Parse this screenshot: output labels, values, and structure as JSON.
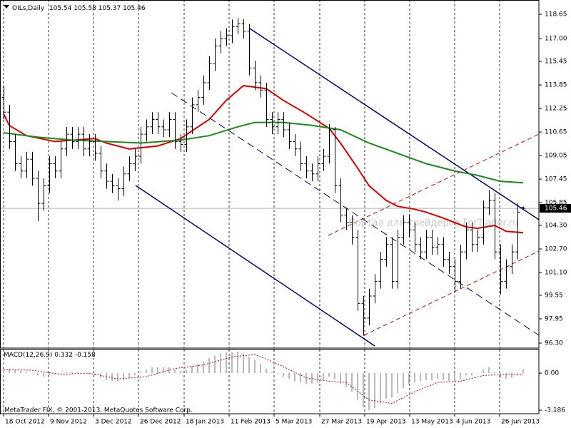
{
  "chart_data": [
    {
      "type": "ohlc",
      "symbol": "OILs,Daily",
      "color": "#000000",
      "xlim": [
        -0.625,
        93.75
      ],
      "xticks": [
        {
          "value": 0,
          "label": "18 Oct 2012"
        },
        {
          "value": 7.875,
          "label": "9 Nov 2012"
        },
        {
          "value": 15.75,
          "label": "3 Dec 2012"
        },
        {
          "value": 23.625,
          "label": "26 Dec 2012"
        },
        {
          "value": 31.625,
          "label": "18 Jan 2013"
        },
        {
          "value": 39.5,
          "label": "11 Feb 2013"
        },
        {
          "value": 47.375,
          "label": "5 Mar 2013"
        },
        {
          "value": 55.375,
          "label": "27 Mar 2013"
        },
        {
          "value": 63.25,
          "label": "19 Apr 2013"
        },
        {
          "value": 71.125,
          "label": "13 May 2013"
        },
        {
          "value": 79,
          "label": "4 Jun 2013"
        },
        {
          "value": 86.875,
          "label": "26 Jun 2013"
        }
      ],
      "ylim": [
        95.96,
        119.38
      ],
      "yticks": [
        118.65,
        {
          "value": 117,
          "label": "117.00"
        },
        115.45,
        113.85,
        112.25,
        110.65,
        109.05,
        107.45,
        105.85,
        {
          "value": 104.3,
          "label": "104.30"
        },
        {
          "value": 102.7,
          "label": "102.70"
        },
        {
          "value": 101.1,
          "label": "101.10"
        },
        99.55,
        97.95,
        {
          "value": 96.3,
          "label": "96.30"
        }
      ],
      "grid": true,
      "watermark": "Портал для трейдеров ForTrader.ru",
      "open": [
        113.0,
        112.0,
        110.0,
        108.5,
        108.0,
        108.8,
        107.5,
        105.8,
        107.0,
        108.5,
        108.0,
        109.5,
        110.5,
        110.0,
        110.5,
        109.5,
        110.0,
        109.2,
        108.0,
        107.3,
        107.0,
        106.8,
        107.8,
        108.5,
        109.0,
        110.5,
        111.0,
        111.5,
        111.0,
        110.8,
        111.5,
        110.0,
        109.8,
        111.0,
        112.5,
        113.0,
        114.0,
        115.3,
        116.5,
        117.0,
        117.2,
        117.8,
        118.0,
        117.5,
        115.0,
        114.0,
        113.5,
        111.5,
        111.0,
        111.5,
        110.8,
        110.0,
        109.5,
        108.5,
        108.0,
        107.8,
        108.5,
        109.0,
        110.8,
        107.0,
        105.0,
        104.5,
        103.5,
        99.0,
        98.0,
        99.5,
        100.5,
        102.0,
        103.0,
        100.5,
        103.5,
        104.5,
        104.0,
        103.0,
        102.5,
        103.5,
        102.8,
        103.0,
        102.0,
        101.5,
        100.5,
        102.5,
        104.0,
        103.0,
        103.5,
        105.5,
        106.0,
        102.5,
        100.5,
        101.5,
        102.5,
        105.54
      ],
      "high": [
        113.8,
        112.5,
        110.5,
        109.0,
        109.3,
        109.3,
        108.0,
        107.5,
        109.0,
        109.0,
        110.0,
        111.0,
        111.0,
        111.0,
        111.0,
        110.5,
        110.5,
        109.7,
        108.5,
        107.8,
        107.5,
        108.3,
        109.0,
        109.5,
        111.0,
        111.5,
        112.0,
        112.0,
        111.5,
        112.0,
        112.0,
        110.5,
        111.5,
        113.0,
        113.5,
        114.5,
        115.8,
        117.0,
        117.5,
        117.7,
        118.3,
        118.4,
        118.3,
        118.0,
        115.5,
        114.5,
        114.0,
        112.0,
        112.0,
        112.0,
        111.3,
        110.5,
        110.0,
        109.0,
        108.5,
        109.0,
        109.5,
        111.2,
        111.0,
        107.5,
        105.5,
        105.0,
        104.0,
        99.5,
        100.0,
        101.0,
        102.5,
        103.5,
        103.5,
        104.0,
        105.0,
        105.0,
        104.5,
        103.5,
        104.0,
        104.0,
        103.5,
        103.5,
        102.5,
        102.0,
        103.0,
        104.5,
        104.5,
        104.0,
        106.0,
        106.7,
        106.5,
        103.0,
        102.0,
        103.0,
        105.8,
        105.58
      ],
      "low": [
        111.5,
        109.5,
        108.0,
        107.5,
        107.5,
        107.0,
        104.6,
        105.3,
        106.5,
        107.5,
        107.5,
        109.0,
        109.5,
        109.5,
        109.0,
        109.0,
        108.7,
        107.5,
        106.8,
        106.5,
        106.0,
        106.3,
        107.3,
        108.0,
        108.5,
        110.0,
        110.5,
        110.5,
        110.3,
        110.3,
        109.5,
        109.3,
        109.3,
        110.5,
        112.0,
        112.5,
        113.5,
        114.8,
        116.0,
        116.5,
        116.7,
        117.3,
        117.0,
        114.5,
        113.5,
        113.0,
        111.0,
        110.5,
        110.5,
        110.3,
        109.5,
        109.0,
        108.0,
        107.5,
        107.3,
        107.3,
        108.0,
        108.5,
        106.5,
        104.5,
        104.0,
        103.0,
        98.5,
        96.8,
        97.5,
        99.0,
        100.0,
        101.5,
        100.0,
        100.0,
        103.0,
        103.5,
        102.5,
        102.0,
        102.0,
        102.3,
        102.3,
        101.5,
        101.0,
        99.8,
        100.0,
        102.0,
        102.5,
        102.5,
        103.0,
        105.0,
        102.0,
        99.6,
        100.0,
        101.0,
        102.0,
        105.37
      ],
      "close": [
        112.0,
        110.0,
        108.5,
        108.0,
        108.8,
        107.5,
        105.8,
        107.0,
        108.5,
        108.0,
        109.5,
        110.5,
        110.0,
        110.5,
        109.5,
        110.0,
        109.2,
        108.0,
        107.3,
        107.0,
        106.8,
        107.8,
        108.5,
        109.0,
        110.5,
        111.0,
        111.5,
        111.0,
        110.8,
        111.5,
        110.0,
        109.8,
        111.0,
        112.5,
        113.0,
        114.0,
        115.3,
        116.5,
        117.0,
        117.2,
        117.8,
        118.0,
        117.5,
        115.0,
        114.0,
        113.5,
        111.5,
        111.0,
        111.5,
        110.8,
        110.0,
        109.5,
        108.5,
        108.0,
        107.8,
        108.5,
        109.0,
        110.8,
        107.0,
        105.0,
        104.5,
        103.5,
        99.0,
        98.0,
        99.5,
        100.5,
        102.0,
        103.0,
        100.5,
        103.5,
        104.5,
        104.0,
        103.0,
        102.5,
        103.5,
        102.8,
        103.0,
        102.0,
        101.5,
        100.5,
        102.5,
        104.0,
        103.0,
        103.5,
        105.5,
        106.0,
        102.5,
        100.5,
        101.5,
        102.5,
        105.2,
        105.46
      ],
      "moving_averages": [
        {
          "color": "#e00000",
          "x": [
            0,
            1,
            4,
            9,
            16,
            18,
            22,
            27,
            31,
            36,
            39,
            42,
            46,
            49,
            53,
            57,
            59,
            62,
            64,
            67,
            69,
            72,
            74,
            77,
            81,
            83,
            86,
            88,
            91
          ],
          "values": [
            111.9,
            111.1,
            110.4,
            110.0,
            110.2,
            109.9,
            109.5,
            109.7,
            110.2,
            111.5,
            112.8,
            113.8,
            113.6,
            112.8,
            111.9,
            110.9,
            109.9,
            108.2,
            107.0,
            106.0,
            105.6,
            105.4,
            105.2,
            104.8,
            104.2,
            104.1,
            104.3,
            103.9,
            103.8
          ]
        },
        {
          "color": "#1a8a1a",
          "x": [
            0,
            6,
            12,
            18,
            24,
            31,
            36,
            41,
            44,
            49,
            54,
            59,
            64,
            69,
            74,
            79,
            83,
            87,
            91
          ],
          "values": [
            110.6,
            110.3,
            110.1,
            110.0,
            109.9,
            110.1,
            110.4,
            111.0,
            111.3,
            111.3,
            111.1,
            110.8,
            109.9,
            109.2,
            108.5,
            108.0,
            107.7,
            107.3,
            107.2
          ]
        }
      ]
    },
    {
      "type": "macd",
      "title": "MACD(12,26,9)",
      "ylim": [
        -3.49,
        2.03
      ],
      "yticks": [
        {
          "value": 0,
          "label": "0.00"
        },
        -3.186
      ],
      "footer": "MetaTrader FIX, © 2001-2013, MetaQuotes Software Corp.",
      "histogram": {
        "color": "#8c8c8c",
        "values": [
          0.3,
          0.4,
          0.3,
          0.2,
          0.1,
          0.0,
          -0.2,
          -0.3,
          -0.2,
          -0.1,
          0.0,
          0.1,
          0.1,
          0.1,
          0.0,
          -0.1,
          -0.2,
          -0.4,
          -0.6,
          -0.7,
          -0.7,
          -0.6,
          -0.4,
          -0.2,
          0.1,
          0.3,
          0.5,
          0.5,
          0.5,
          0.5,
          0.3,
          0.2,
          0.3,
          0.6,
          0.8,
          1.0,
          1.3,
          1.5,
          1.7,
          1.8,
          1.8,
          1.84,
          1.7,
          1.4,
          1.1,
          0.8,
          0.4,
          0.1,
          -0.1,
          -0.3,
          -0.5,
          -0.7,
          -0.8,
          -0.9,
          -0.9,
          -0.8,
          -0.6,
          -0.3,
          -0.5,
          -0.9,
          -1.2,
          -1.6,
          -2.3,
          -2.9,
          -3.186,
          -3.0,
          -2.6,
          -2.2,
          -2.1,
          -1.7,
          -1.3,
          -1.0,
          -0.8,
          -0.7,
          -0.6,
          -0.6,
          -0.5,
          -0.6,
          -0.7,
          -0.8,
          -0.5,
          -0.2,
          -0.2,
          0.0,
          0.3,
          0.5,
          0.1,
          -0.4,
          -0.5,
          -0.4,
          -0.1,
          0.332
        ]
      },
      "signal": {
        "color": "#e00000",
        "x": [
          0,
          5,
          10,
          15,
          20,
          25,
          30,
          35,
          40,
          44,
          48,
          53,
          57,
          60,
          64,
          68,
          72,
          76,
          80,
          84,
          88,
          91
        ],
        "values": [
          0.3,
          0.25,
          -0.1,
          0.0,
          -0.5,
          -0.3,
          0.4,
          0.7,
          1.4,
          1.6,
          0.8,
          -0.4,
          -0.7,
          -0.8,
          -2.3,
          -2.6,
          -1.6,
          -0.8,
          -0.7,
          -0.2,
          -0.1,
          -0.158
        ]
      }
    }
  ]
}
